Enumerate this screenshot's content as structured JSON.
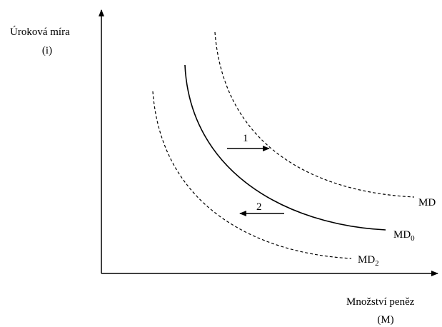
{
  "axes": {
    "y_label_line1": "Úroková míra",
    "y_label_line2": "(i)",
    "x_label_line1": "Množství peněz",
    "x_label_line2": "(M)"
  },
  "curves": [
    {
      "id": "md1",
      "label_main": "MD",
      "label_sub": "",
      "style": "dashed"
    },
    {
      "id": "md0",
      "label_main": "MD",
      "label_sub": "0",
      "style": "solid"
    },
    {
      "id": "md2",
      "label_main": "MD",
      "label_sub": "2",
      "style": "dashed"
    }
  ],
  "arrows": [
    {
      "id": "shift-right",
      "label": "1",
      "direction": "right"
    },
    {
      "id": "shift-left",
      "label": "2",
      "direction": "left"
    }
  ],
  "colors": {
    "line": "#000000",
    "background": "#ffffff"
  }
}
